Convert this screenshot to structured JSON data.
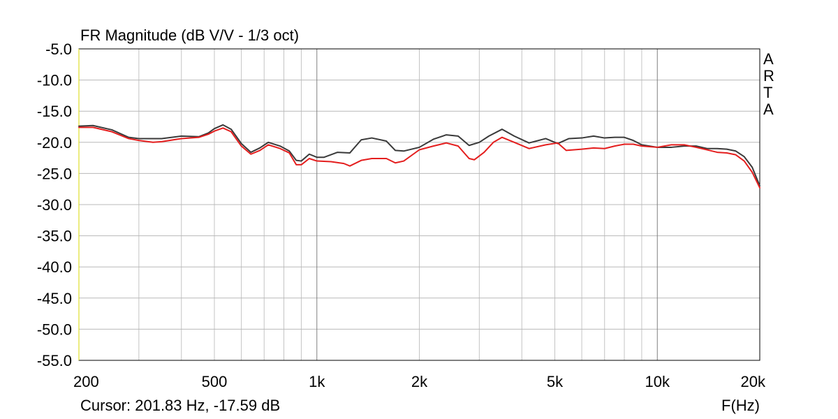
{
  "chart_data": {
    "type": "line",
    "title": "FR Magnitude (dB V/V - 1/3 oct)",
    "xlabel": "F(Hz)",
    "ylabel": "",
    "x_scale": "log",
    "xlim": [
      200,
      20000
    ],
    "ylim": [
      -55,
      -5
    ],
    "grid": true,
    "x_tick_labels": [
      {
        "value": 200,
        "label": "200"
      },
      {
        "value": 500,
        "label": "500"
      },
      {
        "value": 1000,
        "label": "1k"
      },
      {
        "value": 2000,
        "label": "2k"
      },
      {
        "value": 5000,
        "label": "5k"
      },
      {
        "value": 10000,
        "label": "10k"
      },
      {
        "value": 20000,
        "label": "20k"
      }
    ],
    "y_tick_labels": [
      {
        "value": -5,
        "label": "-5.0"
      },
      {
        "value": -10,
        "label": "-10.0"
      },
      {
        "value": -15,
        "label": "-15.0"
      },
      {
        "value": -20,
        "label": "-20.0"
      },
      {
        "value": -25,
        "label": "-25.0"
      },
      {
        "value": -30,
        "label": "-30.0"
      },
      {
        "value": -35,
        "label": "-35.0"
      },
      {
        "value": -40,
        "label": "-40.0"
      },
      {
        "value": -45,
        "label": "-45.0"
      },
      {
        "value": -50,
        "label": "-50.0"
      },
      {
        "value": -55,
        "label": "-55.0"
      }
    ],
    "watermark": "ARTA",
    "cursor_readout": "Cursor: 201.83 Hz, -17.59 dB",
    "series": [
      {
        "color": "#3a3a3a",
        "points": [
          [
            200,
            -17.4
          ],
          [
            220,
            -17.3
          ],
          [
            250,
            -18.0
          ],
          [
            280,
            -19.2
          ],
          [
            300,
            -19.4
          ],
          [
            350,
            -19.4
          ],
          [
            400,
            -19.0
          ],
          [
            450,
            -19.1
          ],
          [
            480,
            -18.5
          ],
          [
            500,
            -17.8
          ],
          [
            530,
            -17.2
          ],
          [
            560,
            -17.9
          ],
          [
            600,
            -20.2
          ],
          [
            640,
            -21.6
          ],
          [
            680,
            -20.9
          ],
          [
            720,
            -20.0
          ],
          [
            780,
            -20.6
          ],
          [
            830,
            -21.4
          ],
          [
            870,
            -22.9
          ],
          [
            900,
            -23.0
          ],
          [
            950,
            -21.9
          ],
          [
            1000,
            -22.4
          ],
          [
            1050,
            -22.4
          ],
          [
            1150,
            -21.6
          ],
          [
            1250,
            -21.7
          ],
          [
            1350,
            -19.6
          ],
          [
            1450,
            -19.3
          ],
          [
            1600,
            -19.8
          ],
          [
            1700,
            -21.3
          ],
          [
            1800,
            -21.4
          ],
          [
            2000,
            -20.8
          ],
          [
            2200,
            -19.5
          ],
          [
            2400,
            -18.8
          ],
          [
            2600,
            -19.0
          ],
          [
            2800,
            -20.5
          ],
          [
            3000,
            -20.0
          ],
          [
            3200,
            -19.0
          ],
          [
            3500,
            -17.9
          ],
          [
            3800,
            -19.0
          ],
          [
            4200,
            -20.1
          ],
          [
            4700,
            -19.4
          ],
          [
            5100,
            -20.2
          ],
          [
            5500,
            -19.4
          ],
          [
            6000,
            -19.3
          ],
          [
            6500,
            -19.0
          ],
          [
            7000,
            -19.3
          ],
          [
            7500,
            -19.2
          ],
          [
            8000,
            -19.2
          ],
          [
            8500,
            -19.7
          ],
          [
            9000,
            -20.4
          ],
          [
            10000,
            -20.8
          ],
          [
            11000,
            -20.8
          ],
          [
            12000,
            -20.6
          ],
          [
            13000,
            -20.6
          ],
          [
            14000,
            -21.0
          ],
          [
            15000,
            -21.0
          ],
          [
            16000,
            -21.1
          ],
          [
            17000,
            -21.4
          ],
          [
            18000,
            -22.3
          ],
          [
            19000,
            -24.0
          ],
          [
            20000,
            -27.0
          ]
        ]
      },
      {
        "color": "#e41e1e",
        "points": [
          [
            200,
            -17.6
          ],
          [
            220,
            -17.6
          ],
          [
            250,
            -18.3
          ],
          [
            280,
            -19.4
          ],
          [
            300,
            -19.7
          ],
          [
            330,
            -20.0
          ],
          [
            350,
            -19.9
          ],
          [
            400,
            -19.4
          ],
          [
            450,
            -19.2
          ],
          [
            480,
            -18.7
          ],
          [
            500,
            -18.2
          ],
          [
            530,
            -17.7
          ],
          [
            560,
            -18.3
          ],
          [
            600,
            -20.6
          ],
          [
            640,
            -21.9
          ],
          [
            680,
            -21.3
          ],
          [
            720,
            -20.4
          ],
          [
            780,
            -21.0
          ],
          [
            830,
            -21.7
          ],
          [
            870,
            -23.6
          ],
          [
            900,
            -23.6
          ],
          [
            950,
            -22.6
          ],
          [
            1000,
            -23.0
          ],
          [
            1100,
            -23.1
          ],
          [
            1200,
            -23.4
          ],
          [
            1250,
            -23.8
          ],
          [
            1350,
            -22.9
          ],
          [
            1450,
            -22.6
          ],
          [
            1600,
            -22.6
          ],
          [
            1700,
            -23.3
          ],
          [
            1800,
            -23.0
          ],
          [
            2000,
            -21.2
          ],
          [
            2200,
            -20.6
          ],
          [
            2400,
            -20.1
          ],
          [
            2600,
            -20.6
          ],
          [
            2800,
            -22.6
          ],
          [
            2900,
            -22.8
          ],
          [
            3100,
            -21.6
          ],
          [
            3300,
            -20.0
          ],
          [
            3500,
            -19.2
          ],
          [
            3800,
            -20.0
          ],
          [
            4200,
            -21.0
          ],
          [
            4700,
            -20.4
          ],
          [
            5100,
            -20.1
          ],
          [
            5400,
            -21.3
          ],
          [
            6000,
            -21.1
          ],
          [
            6500,
            -20.9
          ],
          [
            7000,
            -21.0
          ],
          [
            7500,
            -20.6
          ],
          [
            8000,
            -20.3
          ],
          [
            8500,
            -20.3
          ],
          [
            9000,
            -20.6
          ],
          [
            10000,
            -20.8
          ],
          [
            11000,
            -20.4
          ],
          [
            12000,
            -20.4
          ],
          [
            13000,
            -20.8
          ],
          [
            14000,
            -21.2
          ],
          [
            15000,
            -21.6
          ],
          [
            16000,
            -21.7
          ],
          [
            17000,
            -22.0
          ],
          [
            18000,
            -23.0
          ],
          [
            19000,
            -24.8
          ],
          [
            20000,
            -27.3
          ]
        ]
      }
    ]
  }
}
